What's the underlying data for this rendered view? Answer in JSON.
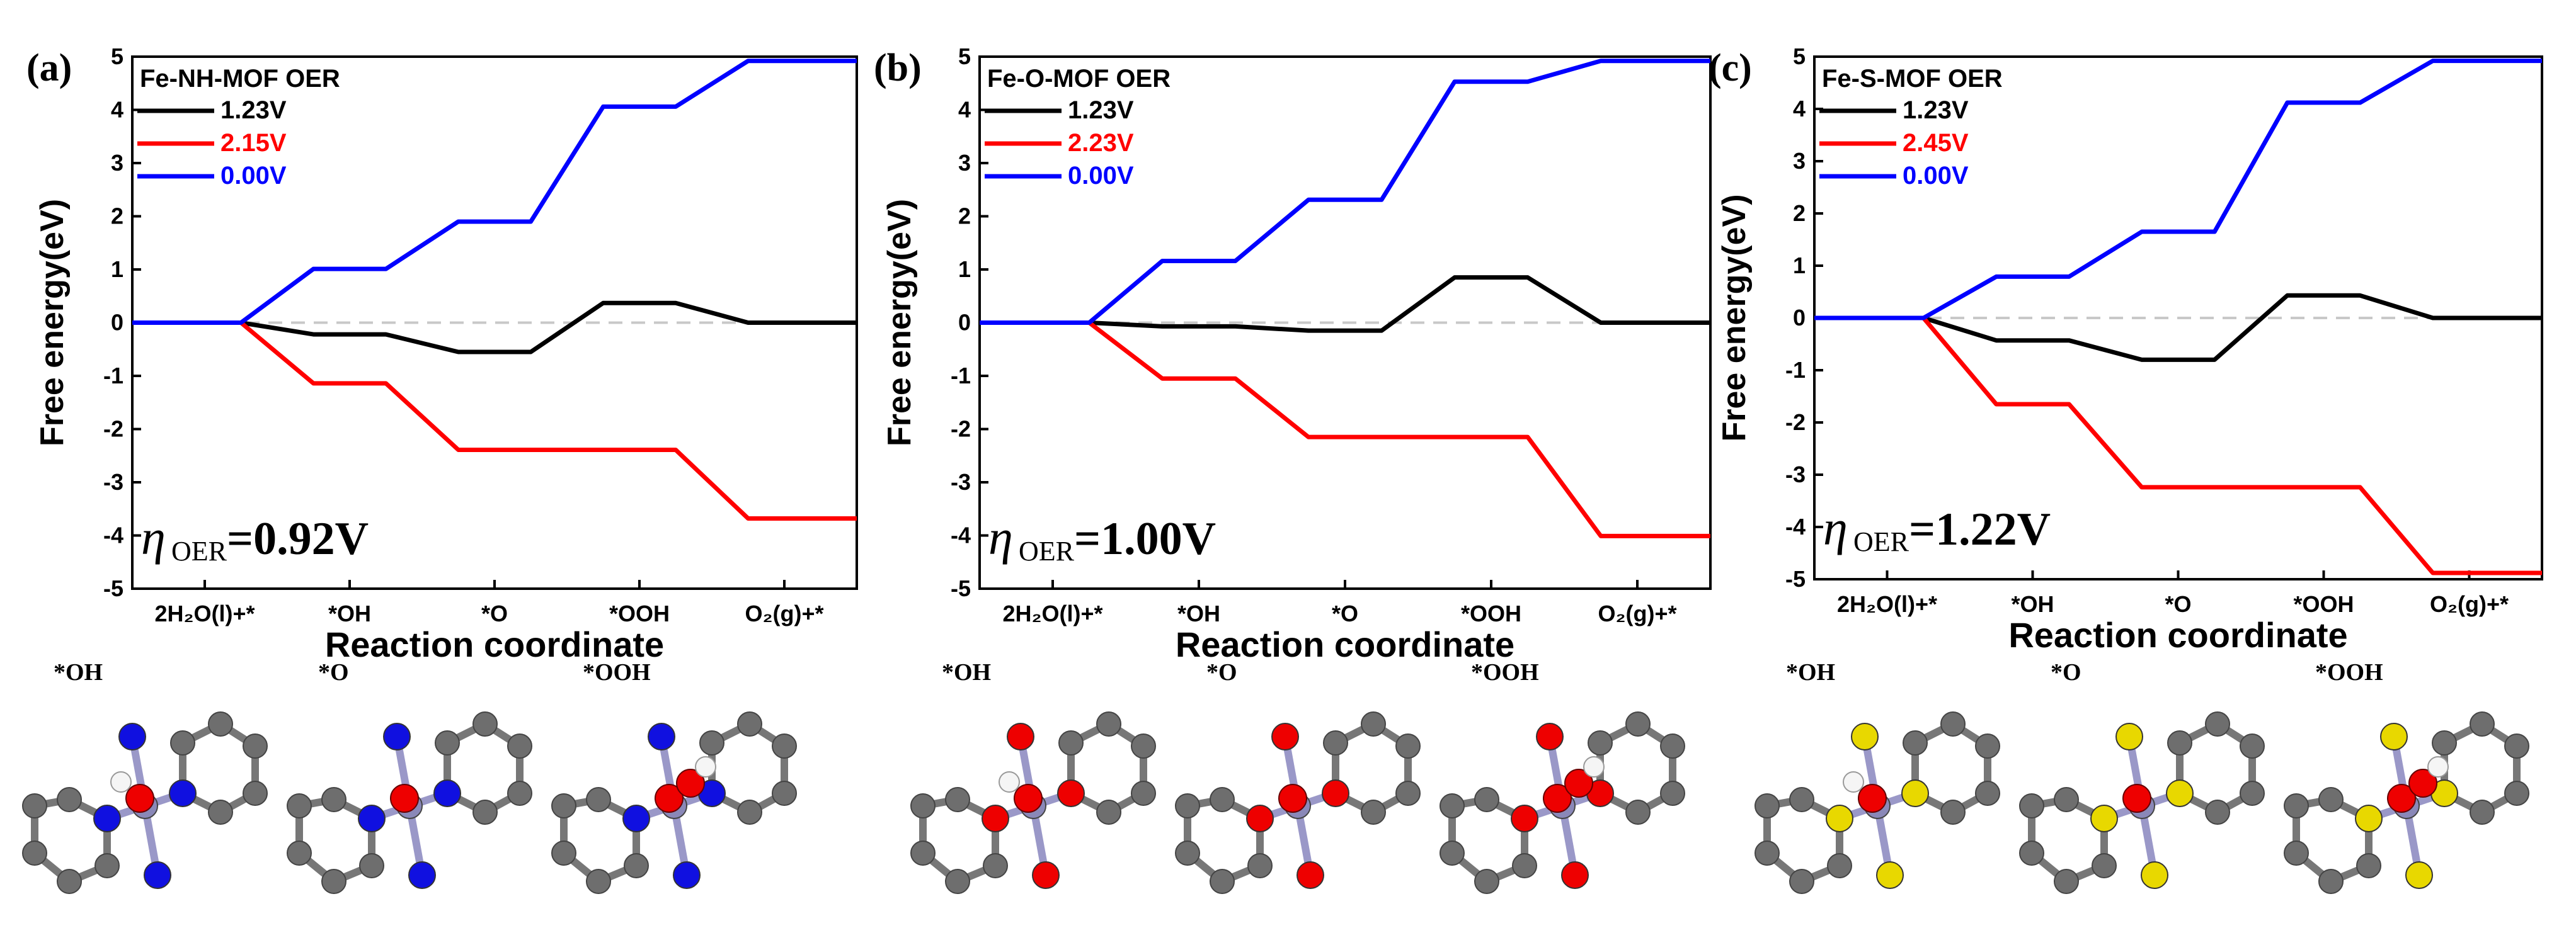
{
  "chart_data": [
    {
      "type": "line",
      "panel_label": "(a)",
      "title": "Fe-NH-MOF  OER",
      "xlabel": "Reaction coordinate",
      "ylabel": "Free energy(eV)",
      "ylim": [
        -5,
        5
      ],
      "yticks": [
        "-5",
        "-4",
        "-3",
        "-2",
        "-1",
        "0",
        "1",
        "2",
        "3",
        "4",
        "5"
      ],
      "categories": [
        "2H₂O(l)+*",
        "*OH",
        "*O",
        "*OOH",
        "O₂(g)+*"
      ],
      "series": [
        {
          "name": "1.23V",
          "color": "#000000",
          "values": [
            0.0,
            -0.22,
            -0.55,
            0.37,
            0.0
          ]
        },
        {
          "name": "2.15V",
          "color": "#ff0000",
          "values": [
            0.0,
            -1.14,
            -2.39,
            -2.39,
            -3.68
          ]
        },
        {
          "name": "0.00V",
          "color": "#0000ff",
          "values": [
            0.0,
            1.01,
            1.9,
            4.06,
            4.92
          ]
        }
      ],
      "overpotential": {
        "symbol": "η",
        "subscript": "OER",
        "value": "=0.92V"
      },
      "structures": [
        "*OH",
        "*O",
        "*OOH"
      ],
      "dopant_atom": "N"
    },
    {
      "type": "line",
      "panel_label": "(b)",
      "title": "Fe-O-MOF  OER",
      "xlabel": "Reaction coordinate",
      "ylabel": "Free energy(eV)",
      "ylim": [
        -5,
        5
      ],
      "yticks": [
        "-5",
        "-4",
        "-3",
        "-2",
        "-1",
        "0",
        "1",
        "2",
        "3",
        "4",
        "5"
      ],
      "categories": [
        "2H₂O(l)+*",
        "*OH",
        "*O",
        "*OOH",
        "O₂(g)+*"
      ],
      "series": [
        {
          "name": "1.23V",
          "color": "#000000",
          "values": [
            0.0,
            -0.07,
            -0.15,
            0.85,
            0.0
          ]
        },
        {
          "name": "2.23V",
          "color": "#ff0000",
          "values": [
            0.0,
            -1.05,
            -2.15,
            -2.15,
            -4.01
          ]
        },
        {
          "name": "0.00V",
          "color": "#0000ff",
          "values": [
            0.0,
            1.16,
            2.31,
            4.53,
            4.92
          ]
        }
      ],
      "overpotential": {
        "symbol": "η",
        "subscript": "OER",
        "value": "=1.00V"
      },
      "structures": [
        "*OH",
        "*O",
        "*OOH"
      ],
      "dopant_atom": "O"
    },
    {
      "type": "line",
      "panel_label": "(c)",
      "title": "Fe-S-MOF  OER",
      "xlabel": "Reaction coordinate",
      "ylabel": "Free energy(eV)",
      "ylim": [
        -5,
        5
      ],
      "yticks": [
        "-5",
        "-4",
        "-3",
        "-2",
        "-1",
        "0",
        "1",
        "2",
        "3",
        "4",
        "5"
      ],
      "categories": [
        "2H₂O(l)+*",
        "*OH",
        "*O",
        "*OOH",
        "O₂(g)+*"
      ],
      "series": [
        {
          "name": "1.23V",
          "color": "#000000",
          "values": [
            0.0,
            -0.43,
            -0.8,
            0.43,
            0.0
          ]
        },
        {
          "name": "2.45V",
          "color": "#ff0000",
          "values": [
            0.0,
            -1.65,
            -3.24,
            -3.24,
            -4.88
          ]
        },
        {
          "name": "0.00V",
          "color": "#0000ff",
          "values": [
            0.0,
            0.79,
            1.65,
            4.12,
            4.92
          ]
        }
      ],
      "overpotential": {
        "symbol": "η",
        "subscript": "OER",
        "value": "=1.22V"
      },
      "structures": [
        "*OH",
        "*O",
        "*OOH"
      ],
      "dopant_atom": "S"
    }
  ],
  "colors": {
    "fe": "#8a88b8",
    "n": "#1010e0",
    "o": "#ee0000",
    "s": "#e8d800",
    "c": "#6e6e6e",
    "h": "#f5f5f5",
    "zero_line": "#c8c8c8"
  }
}
